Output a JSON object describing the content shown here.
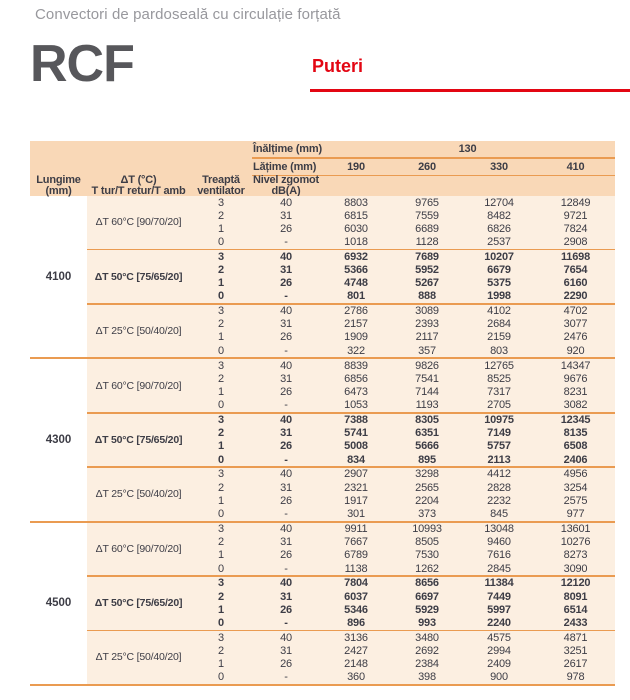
{
  "header": {
    "subtitle": "Convectori de pardoseală cu circulație forțată",
    "product_code": "RCF",
    "section_title": "Puteri"
  },
  "colors": {
    "accent_red": "#e30613",
    "header_bg": "#f9d8b7",
    "body_bg": "#fcefe1",
    "line_orange": "#ea9b51",
    "text_dark": "#3d3d46",
    "subtitle_gray": "#98989d",
    "logo_gray": "#57575b"
  },
  "table": {
    "height_row": {
      "label": "Înălțime (mm)",
      "value": "130"
    },
    "width_row": {
      "label": "Lățime (mm)",
      "values": [
        "190",
        "260",
        "330",
        "410"
      ]
    },
    "columns": {
      "length": [
        "Lungime",
        "(mm)"
      ],
      "dt": [
        "ΔT (°C)",
        "T tur/T retur/T amb"
      ],
      "fan_step": [
        "Treaptă",
        "ventilator"
      ],
      "noise": [
        "Nivel zgomot",
        "dB(A)"
      ]
    },
    "groups": [
      {
        "length": "4100",
        "blocks": [
          {
            "dt": "ΔT 60°C [90/70/20]",
            "bold": false,
            "rows": [
              {
                "step": "3",
                "noise": "40",
                "values": [
                  "8803",
                  "9765",
                  "12704",
                  "12849"
                ]
              },
              {
                "step": "2",
                "noise": "31",
                "values": [
                  "6815",
                  "7559",
                  "8482",
                  "9721"
                ]
              },
              {
                "step": "1",
                "noise": "26",
                "values": [
                  "6030",
                  "6689",
                  "6826",
                  "7824"
                ]
              },
              {
                "step": "0",
                "noise": "-",
                "values": [
                  "1018",
                  "1128",
                  "2537",
                  "2908"
                ]
              }
            ]
          },
          {
            "dt": "ΔT 50°C [75/65/20]",
            "bold": true,
            "rows": [
              {
                "step": "3",
                "noise": "40",
                "values": [
                  "6932",
                  "7689",
                  "10207",
                  "11698"
                ]
              },
              {
                "step": "2",
                "noise": "31",
                "values": [
                  "5366",
                  "5952",
                  "6679",
                  "7654"
                ]
              },
              {
                "step": "1",
                "noise": "26",
                "values": [
                  "4748",
                  "5267",
                  "5375",
                  "6160"
                ]
              },
              {
                "step": "0",
                "noise": "-",
                "values": [
                  "801",
                  "888",
                  "1998",
                  "2290"
                ]
              }
            ]
          },
          {
            "dt": "ΔT 25°C [50/40/20]",
            "bold": false,
            "rows": [
              {
                "step": "3",
                "noise": "40",
                "values": [
                  "2786",
                  "3089",
                  "4102",
                  "4702"
                ]
              },
              {
                "step": "2",
                "noise": "31",
                "values": [
                  "2157",
                  "2393",
                  "2684",
                  "3077"
                ]
              },
              {
                "step": "1",
                "noise": "26",
                "values": [
                  "1909",
                  "2117",
                  "2159",
                  "2476"
                ]
              },
              {
                "step": "0",
                "noise": "-",
                "values": [
                  "322",
                  "357",
                  "803",
                  "920"
                ]
              }
            ]
          }
        ]
      },
      {
        "length": "4300",
        "blocks": [
          {
            "dt": "ΔT 60°C [90/70/20]",
            "bold": false,
            "rows": [
              {
                "step": "3",
                "noise": "40",
                "values": [
                  "8839",
                  "9826",
                  "12765",
                  "14347"
                ]
              },
              {
                "step": "2",
                "noise": "31",
                "values": [
                  "6856",
                  "7541",
                  "8525",
                  "9676"
                ]
              },
              {
                "step": "1",
                "noise": "26",
                "values": [
                  "6473",
                  "7144",
                  "7317",
                  "8231"
                ]
              },
              {
                "step": "0",
                "noise": "-",
                "values": [
                  "1053",
                  "1193",
                  "2705",
                  "3082"
                ]
              }
            ]
          },
          {
            "dt": "ΔT 50°C [75/65/20]",
            "bold": true,
            "rows": [
              {
                "step": "3",
                "noise": "40",
                "values": [
                  "7388",
                  "8305",
                  "10975",
                  "12345"
                ]
              },
              {
                "step": "2",
                "noise": "31",
                "values": [
                  "5741",
                  "6351",
                  "7149",
                  "8135"
                ]
              },
              {
                "step": "1",
                "noise": "26",
                "values": [
                  "5008",
                  "5666",
                  "5757",
                  "6508"
                ]
              },
              {
                "step": "0",
                "noise": "-",
                "values": [
                  "834",
                  "895",
                  "2113",
                  "2406"
                ]
              }
            ]
          },
          {
            "dt": "ΔT 25°C [50/40/20]",
            "bold": false,
            "rows": [
              {
                "step": "3",
                "noise": "40",
                "values": [
                  "2907",
                  "3298",
                  "4412",
                  "4956"
                ]
              },
              {
                "step": "2",
                "noise": "31",
                "values": [
                  "2321",
                  "2565",
                  "2828",
                  "3254"
                ]
              },
              {
                "step": "1",
                "noise": "26",
                "values": [
                  "1917",
                  "2204",
                  "2232",
                  "2575"
                ]
              },
              {
                "step": "0",
                "noise": "-",
                "values": [
                  "301",
                  "373",
                  "845",
                  "977"
                ]
              }
            ]
          }
        ]
      },
      {
        "length": "4500",
        "blocks": [
          {
            "dt": "ΔT 60°C [90/70/20]",
            "bold": false,
            "rows": [
              {
                "step": "3",
                "noise": "40",
                "values": [
                  "9911",
                  "10993",
                  "13048",
                  "13601"
                ]
              },
              {
                "step": "2",
                "noise": "31",
                "values": [
                  "7667",
                  "8505",
                  "9460",
                  "10276"
                ]
              },
              {
                "step": "1",
                "noise": "26",
                "values": [
                  "6789",
                  "7530",
                  "7616",
                  "8273"
                ]
              },
              {
                "step": "0",
                "noise": "-",
                "values": [
                  "1138",
                  "1262",
                  "2845",
                  "3090"
                ]
              }
            ]
          },
          {
            "dt": "ΔT 50°C [75/65/20]",
            "bold": true,
            "rows": [
              {
                "step": "3",
                "noise": "40",
                "values": [
                  "7804",
                  "8656",
                  "11384",
                  "12120"
                ]
              },
              {
                "step": "2",
                "noise": "31",
                "values": [
                  "6037",
                  "6697",
                  "7449",
                  "8091"
                ]
              },
              {
                "step": "1",
                "noise": "26",
                "values": [
                  "5346",
                  "5929",
                  "5997",
                  "6514"
                ]
              },
              {
                "step": "0",
                "noise": "-",
                "values": [
                  "896",
                  "993",
                  "2240",
                  "2433"
                ]
              }
            ]
          },
          {
            "dt": "ΔT 25°C [50/40/20]",
            "bold": false,
            "rows": [
              {
                "step": "3",
                "noise": "40",
                "values": [
                  "3136",
                  "3480",
                  "4575",
                  "4871"
                ]
              },
              {
                "step": "2",
                "noise": "31",
                "values": [
                  "2427",
                  "2692",
                  "2994",
                  "3251"
                ]
              },
              {
                "step": "1",
                "noise": "26",
                "values": [
                  "2148",
                  "2384",
                  "2409",
                  "2617"
                ]
              },
              {
                "step": "0",
                "noise": "-",
                "values": [
                  "360",
                  "398",
                  "900",
                  "978"
                ]
              }
            ]
          }
        ]
      }
    ]
  }
}
